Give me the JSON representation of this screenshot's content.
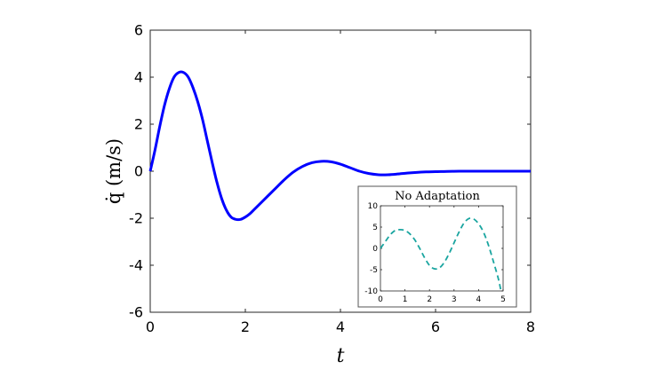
{
  "chart_data": [
    {
      "type": "line",
      "title": "",
      "xlabel": "t",
      "ylabel": "q̇ (m/s)",
      "xlim": [
        0,
        8
      ],
      "ylim": [
        -6,
        6
      ],
      "xticks": [
        "0",
        "2",
        "4",
        "6",
        "8"
      ],
      "yticks": [
        "6",
        "4",
        "2",
        "0",
        "-2",
        "-4",
        "-6"
      ],
      "grid": false,
      "series": [
        {
          "color": "#0000ff",
          "style": "solid",
          "x": [
            0,
            0.1,
            0.2,
            0.3,
            0.4,
            0.5,
            0.6,
            0.7,
            0.8,
            0.9,
            1.0,
            1.1,
            1.2,
            1.3,
            1.4,
            1.5,
            1.6,
            1.7,
            1.8,
            1.9,
            2.0,
            2.1,
            2.2,
            2.4,
            2.6,
            2.8,
            3.0,
            3.2,
            3.4,
            3.6,
            3.8,
            4.0,
            4.2,
            4.4,
            4.6,
            4.8,
            5.0,
            5.2,
            5.4,
            5.6,
            5.8,
            6.0,
            6.5,
            7.0,
            7.5,
            8.0
          ],
          "y": [
            0,
            0.9,
            1.9,
            2.8,
            3.5,
            4.0,
            4.2,
            4.2,
            4.0,
            3.55,
            2.95,
            2.2,
            1.3,
            0.4,
            -0.45,
            -1.15,
            -1.65,
            -1.95,
            -2.05,
            -2.05,
            -1.95,
            -1.8,
            -1.6,
            -1.2,
            -0.8,
            -0.4,
            -0.05,
            0.2,
            0.36,
            0.42,
            0.4,
            0.3,
            0.15,
            0.0,
            -0.1,
            -0.15,
            -0.15,
            -0.12,
            -0.08,
            -0.05,
            -0.03,
            -0.02,
            0.0,
            0.0,
            0.0,
            0.0
          ]
        }
      ]
    },
    {
      "type": "line",
      "title": "No Adaptation",
      "xlabel": "",
      "ylabel": "",
      "xlim": [
        0,
        5
      ],
      "ylim": [
        -10,
        10
      ],
      "xticks": [
        "0",
        "1",
        "2",
        "3",
        "4",
        "5"
      ],
      "yticks": [
        "10",
        "5",
        "0",
        "-5",
        "-10"
      ],
      "grid": false,
      "series": [
        {
          "color": "#1aa5a0",
          "style": "dashed",
          "x": [
            0,
            0.2,
            0.4,
            0.6,
            0.8,
            1.0,
            1.2,
            1.4,
            1.6,
            1.8,
            2.0,
            2.2,
            2.4,
            2.6,
            2.8,
            3.0,
            3.2,
            3.4,
            3.6,
            3.8,
            4.0,
            4.2,
            4.4,
            4.6,
            4.8,
            4.9
          ],
          "y": [
            0,
            1.6,
            3.2,
            4.2,
            4.4,
            4.2,
            3.4,
            2.0,
            0.0,
            -2.2,
            -4.0,
            -4.8,
            -4.6,
            -3.3,
            -1.2,
            1.3,
            3.8,
            5.9,
            7.0,
            6.9,
            5.8,
            3.8,
            0.8,
            -3.0,
            -7.0,
            -9.6
          ]
        }
      ]
    }
  ]
}
